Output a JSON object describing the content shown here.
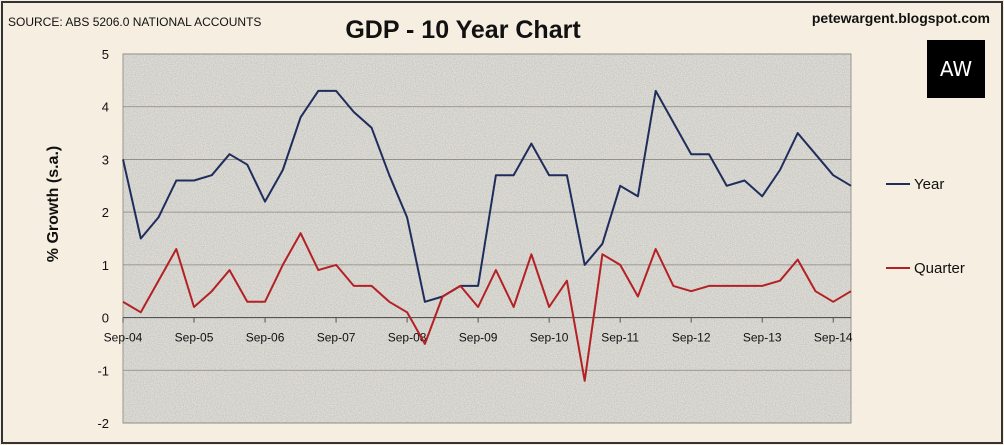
{
  "header": {
    "source": "SOURCE: ABS 5206.0 NATIONAL ACCOUNTS",
    "blog": "petewargent.blogspot.com",
    "logo_text": "AW"
  },
  "chart_data": {
    "type": "line",
    "title": "GDP - 10 Year Chart",
    "xlabel": "",
    "ylabel": "% Growth (s.a.)",
    "ylim": [
      -2,
      5
    ],
    "yticks": [
      -2,
      -1,
      0,
      1,
      2,
      3,
      4,
      5
    ],
    "x_tick_labels": [
      "Sep-04",
      "Sep-05",
      "Sep-06",
      "Sep-07",
      "Sep-08",
      "Sep-09",
      "Sep-10",
      "Sep-11",
      "Sep-12",
      "Sep-13",
      "Sep-14"
    ],
    "quarters_per_tick": 4,
    "grid": true,
    "legend_position": "right",
    "series": [
      {
        "name": "Year",
        "color": "#1f2d5c",
        "values": [
          3.0,
          1.5,
          1.9,
          2.6,
          2.6,
          2.7,
          3.1,
          2.9,
          2.2,
          2.8,
          3.8,
          4.3,
          4.3,
          3.9,
          3.6,
          2.7,
          1.9,
          0.3,
          0.4,
          0.6,
          0.6,
          2.7,
          2.7,
          3.3,
          2.7,
          2.7,
          1.0,
          1.4,
          2.5,
          2.3,
          4.3,
          3.7,
          3.1,
          3.1,
          2.5,
          2.6,
          2.3,
          2.8,
          3.5,
          3.1,
          2.7,
          2.5
        ]
      },
      {
        "name": "Quarter",
        "color": "#b42124",
        "values": [
          0.3,
          0.1,
          0.7,
          1.3,
          0.2,
          0.5,
          0.9,
          0.3,
          0.3,
          1.0,
          1.6,
          0.9,
          1.0,
          0.6,
          0.6,
          0.3,
          0.1,
          -0.5,
          0.4,
          0.6,
          0.2,
          0.9,
          0.2,
          1.2,
          0.2,
          0.7,
          -1.2,
          1.2,
          1.0,
          0.4,
          1.3,
          0.6,
          0.5,
          0.6,
          0.6,
          0.6,
          0.6,
          0.7,
          1.1,
          0.5,
          0.3,
          0.5
        ]
      }
    ]
  }
}
